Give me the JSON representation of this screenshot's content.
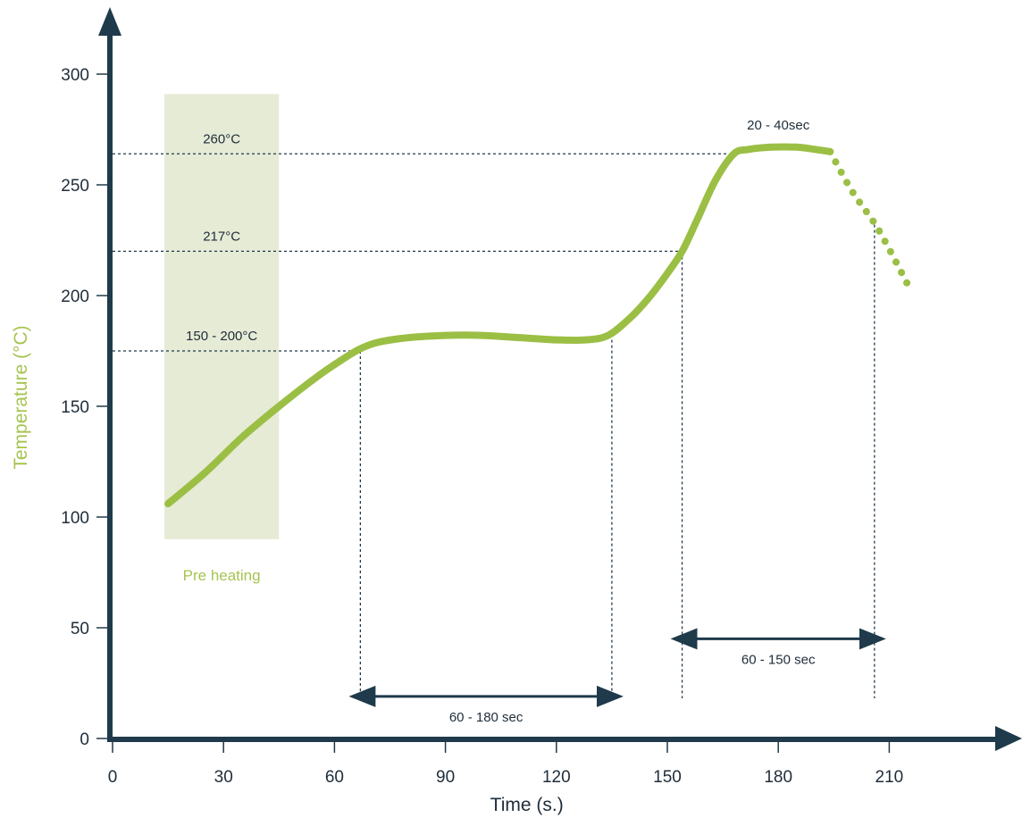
{
  "colors": {
    "curve": "#9bbf45",
    "axis": "#1f3a4a",
    "preheat_zone": "#e6ebd6",
    "ylabel": "#a6c451",
    "text": "#1f2d3a"
  },
  "chart_data": {
    "type": "line",
    "xlabel": "Time (s.)",
    "ylabel": "Temperature (°C)",
    "xlim": [
      0,
      225
    ],
    "ylim": [
      0,
      300
    ],
    "xticks": [
      0,
      30,
      60,
      90,
      120,
      150,
      180,
      210
    ],
    "yticks": [
      0,
      50,
      100,
      150,
      200,
      250,
      300
    ],
    "series": [
      {
        "style": "solid",
        "x": [
          15,
          25,
          35,
          45,
          55,
          62,
          67,
          72,
          80,
          90,
          100,
          110,
          120,
          128,
          134,
          140,
          145,
          150,
          154,
          158,
          163,
          168,
          172,
          178,
          185,
          190,
          194
        ],
        "y": [
          106,
          120,
          136,
          150,
          163,
          171,
          176,
          179,
          181,
          182,
          182,
          181,
          180,
          180,
          182,
          190,
          199,
          210,
          220,
          234,
          252,
          264,
          266,
          267,
          267,
          266,
          265
        ]
      },
      {
        "style": "dotted",
        "x": [
          194,
          200,
          207,
          215
        ],
        "y": [
          265,
          247,
          230,
          205
        ]
      }
    ],
    "preheat_zone": {
      "x": [
        14,
        45
      ],
      "y": [
        90,
        291
      ],
      "label": "Pre heating"
    },
    "reference_lines": [
      {
        "y": 264,
        "label": "260°C",
        "x_end": 167
      },
      {
        "y": 220,
        "label": "217°C",
        "x_end": 154
      },
      {
        "y": 175,
        "label": "150 - 200°C",
        "x_end": 67
      }
    ],
    "vertical_lines": [
      {
        "x": 67,
        "y_top": 175
      },
      {
        "x": 135,
        "y_top": 180
      },
      {
        "x": 154,
        "y_top": 220
      },
      {
        "x": 206,
        "y_top": 232
      }
    ],
    "intervals": [
      {
        "x": [
          67,
          135
        ],
        "y": 19,
        "label": "60 - 180 sec"
      },
      {
        "x": [
          154,
          206
        ],
        "y": 45,
        "label": "60 - 150 sec"
      }
    ],
    "annotations": [
      {
        "text": "20 - 40sec",
        "x": 180,
        "y": 275
      }
    ]
  }
}
